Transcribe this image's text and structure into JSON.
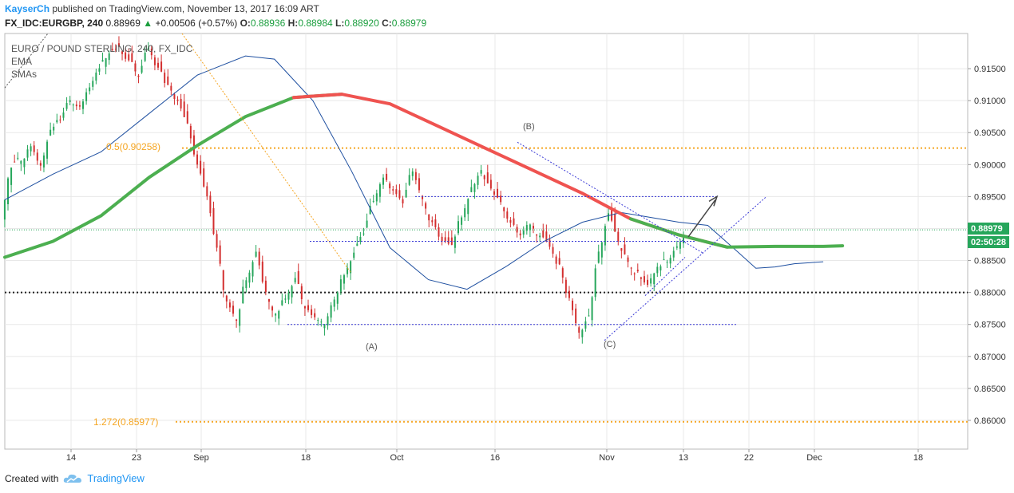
{
  "header": {
    "author": "KayserCh",
    "published": "published on TradingView.com, November 13, 2017 16:09 ART"
  },
  "symbol_bar": {
    "symbol": "FX_IDC:EURGBP, 240",
    "last": "0.88969",
    "change": "+0.00506 (+0.57%)",
    "o_label": "O:",
    "o_value": "0.88936",
    "h_label": "H:",
    "h_value": "0.88984",
    "l_label": "L:",
    "l_value": "0.88920",
    "c_label": "C:",
    "c_value": "0.88979"
  },
  "legend": {
    "title": "EURO / POUND STERLING, 240, FX_IDC",
    "ema": "EMA",
    "smas": "SMAs"
  },
  "annotations": {
    "fib_05": "0.5(0.90258)",
    "fib_1272": "1.272(0.85977)",
    "point_a": "(A)",
    "point_b": "(B)",
    "point_c": "(C)"
  },
  "price_tags": {
    "last_price": "0.88979",
    "countdown": "02:50:28"
  },
  "footer": {
    "created_with": "Created with",
    "brand": "TradingView"
  },
  "colors": {
    "up": "#1b9e3e",
    "ema_down": "#ef5350",
    "ema_up": "#4caf50",
    "sma": "#1e4fa0",
    "fib": "#f5a623",
    "trend": "#3a3ad6",
    "brand": "#2196f3"
  },
  "chart_data": {
    "type": "candlestick",
    "y_axis": {
      "min": 0.8555,
      "max": 0.9205,
      "ticks": [
        "0.86000",
        "0.86500",
        "0.87000",
        "0.87500",
        "0.88000",
        "0.88500",
        "0.89000",
        "0.89500",
        "0.90000",
        "0.90500",
        "0.91000",
        "0.91500"
      ]
    },
    "x_axis": {
      "ticks": [
        "14",
        "23",
        "Sep",
        "18",
        "Oct",
        "16",
        "Nov",
        "13",
        "22",
        "Dec",
        "18"
      ]
    },
    "horizontal_levels": [
      {
        "name": "fib_05",
        "value": 0.90258
      },
      {
        "name": "fib_1272",
        "value": 0.85977
      },
      {
        "name": "support",
        "value": 0.88
      }
    ],
    "ema_path": [
      [
        0.0,
        0.8855
      ],
      [
        0.05,
        0.888
      ],
      [
        0.1,
        0.892
      ],
      [
        0.15,
        0.898
      ],
      [
        0.2,
        0.903
      ],
      [
        0.25,
        0.9075
      ],
      [
        0.3,
        0.9105
      ],
      [
        0.35,
        0.911
      ],
      [
        0.4,
        0.9095
      ],
      [
        0.45,
        0.906
      ],
      [
        0.5,
        0.9025
      ],
      [
        0.55,
        0.899
      ],
      [
        0.6,
        0.8955
      ],
      [
        0.65,
        0.8915
      ],
      [
        0.7,
        0.889
      ],
      [
        0.75,
        0.8871
      ],
      [
        0.8,
        0.8872
      ],
      [
        0.85,
        0.8872
      ],
      [
        0.87,
        0.8873
      ]
    ],
    "sma_path": [
      [
        0.0,
        0.8945
      ],
      [
        0.05,
        0.8985
      ],
      [
        0.1,
        0.902
      ],
      [
        0.15,
        0.908
      ],
      [
        0.2,
        0.914
      ],
      [
        0.25,
        0.917
      ],
      [
        0.28,
        0.9165
      ],
      [
        0.32,
        0.91
      ],
      [
        0.36,
        0.899
      ],
      [
        0.4,
        0.887
      ],
      [
        0.44,
        0.882
      ],
      [
        0.48,
        0.8805
      ],
      [
        0.52,
        0.884
      ],
      [
        0.56,
        0.888
      ],
      [
        0.6,
        0.891
      ],
      [
        0.64,
        0.8925
      ],
      [
        0.66,
        0.892
      ],
      [
        0.7,
        0.891
      ],
      [
        0.73,
        0.8905
      ],
      [
        0.76,
        0.8865
      ],
      [
        0.78,
        0.8838
      ],
      [
        0.8,
        0.884
      ],
      [
        0.82,
        0.8845
      ],
      [
        0.85,
        0.8848
      ]
    ],
    "candles_close": [
      0.9,
      0.901,
      0.903,
      0.9,
      0.905,
      0.907,
      0.91,
      0.909,
      0.912,
      0.915,
      0.9175,
      0.918,
      0.916,
      0.914,
      0.918,
      0.915,
      0.912,
      0.91,
      0.906,
      0.9,
      0.895,
      0.887,
      0.879,
      0.876,
      0.882,
      0.886,
      0.88,
      0.877,
      0.879,
      0.882,
      0.878,
      0.876,
      0.8755,
      0.879,
      0.883,
      0.886,
      0.889,
      0.894,
      0.898,
      0.896,
      0.894,
      0.899,
      0.895,
      0.891,
      0.888,
      0.887,
      0.892,
      0.896,
      0.899,
      0.896,
      0.894,
      0.891,
      0.889,
      0.891,
      0.889,
      0.887,
      0.884,
      0.879,
      0.874,
      0.876,
      0.886,
      0.892,
      0.888,
      0.885,
      0.883,
      0.881,
      0.884,
      0.885,
      0.887,
      0.8898
    ]
  }
}
